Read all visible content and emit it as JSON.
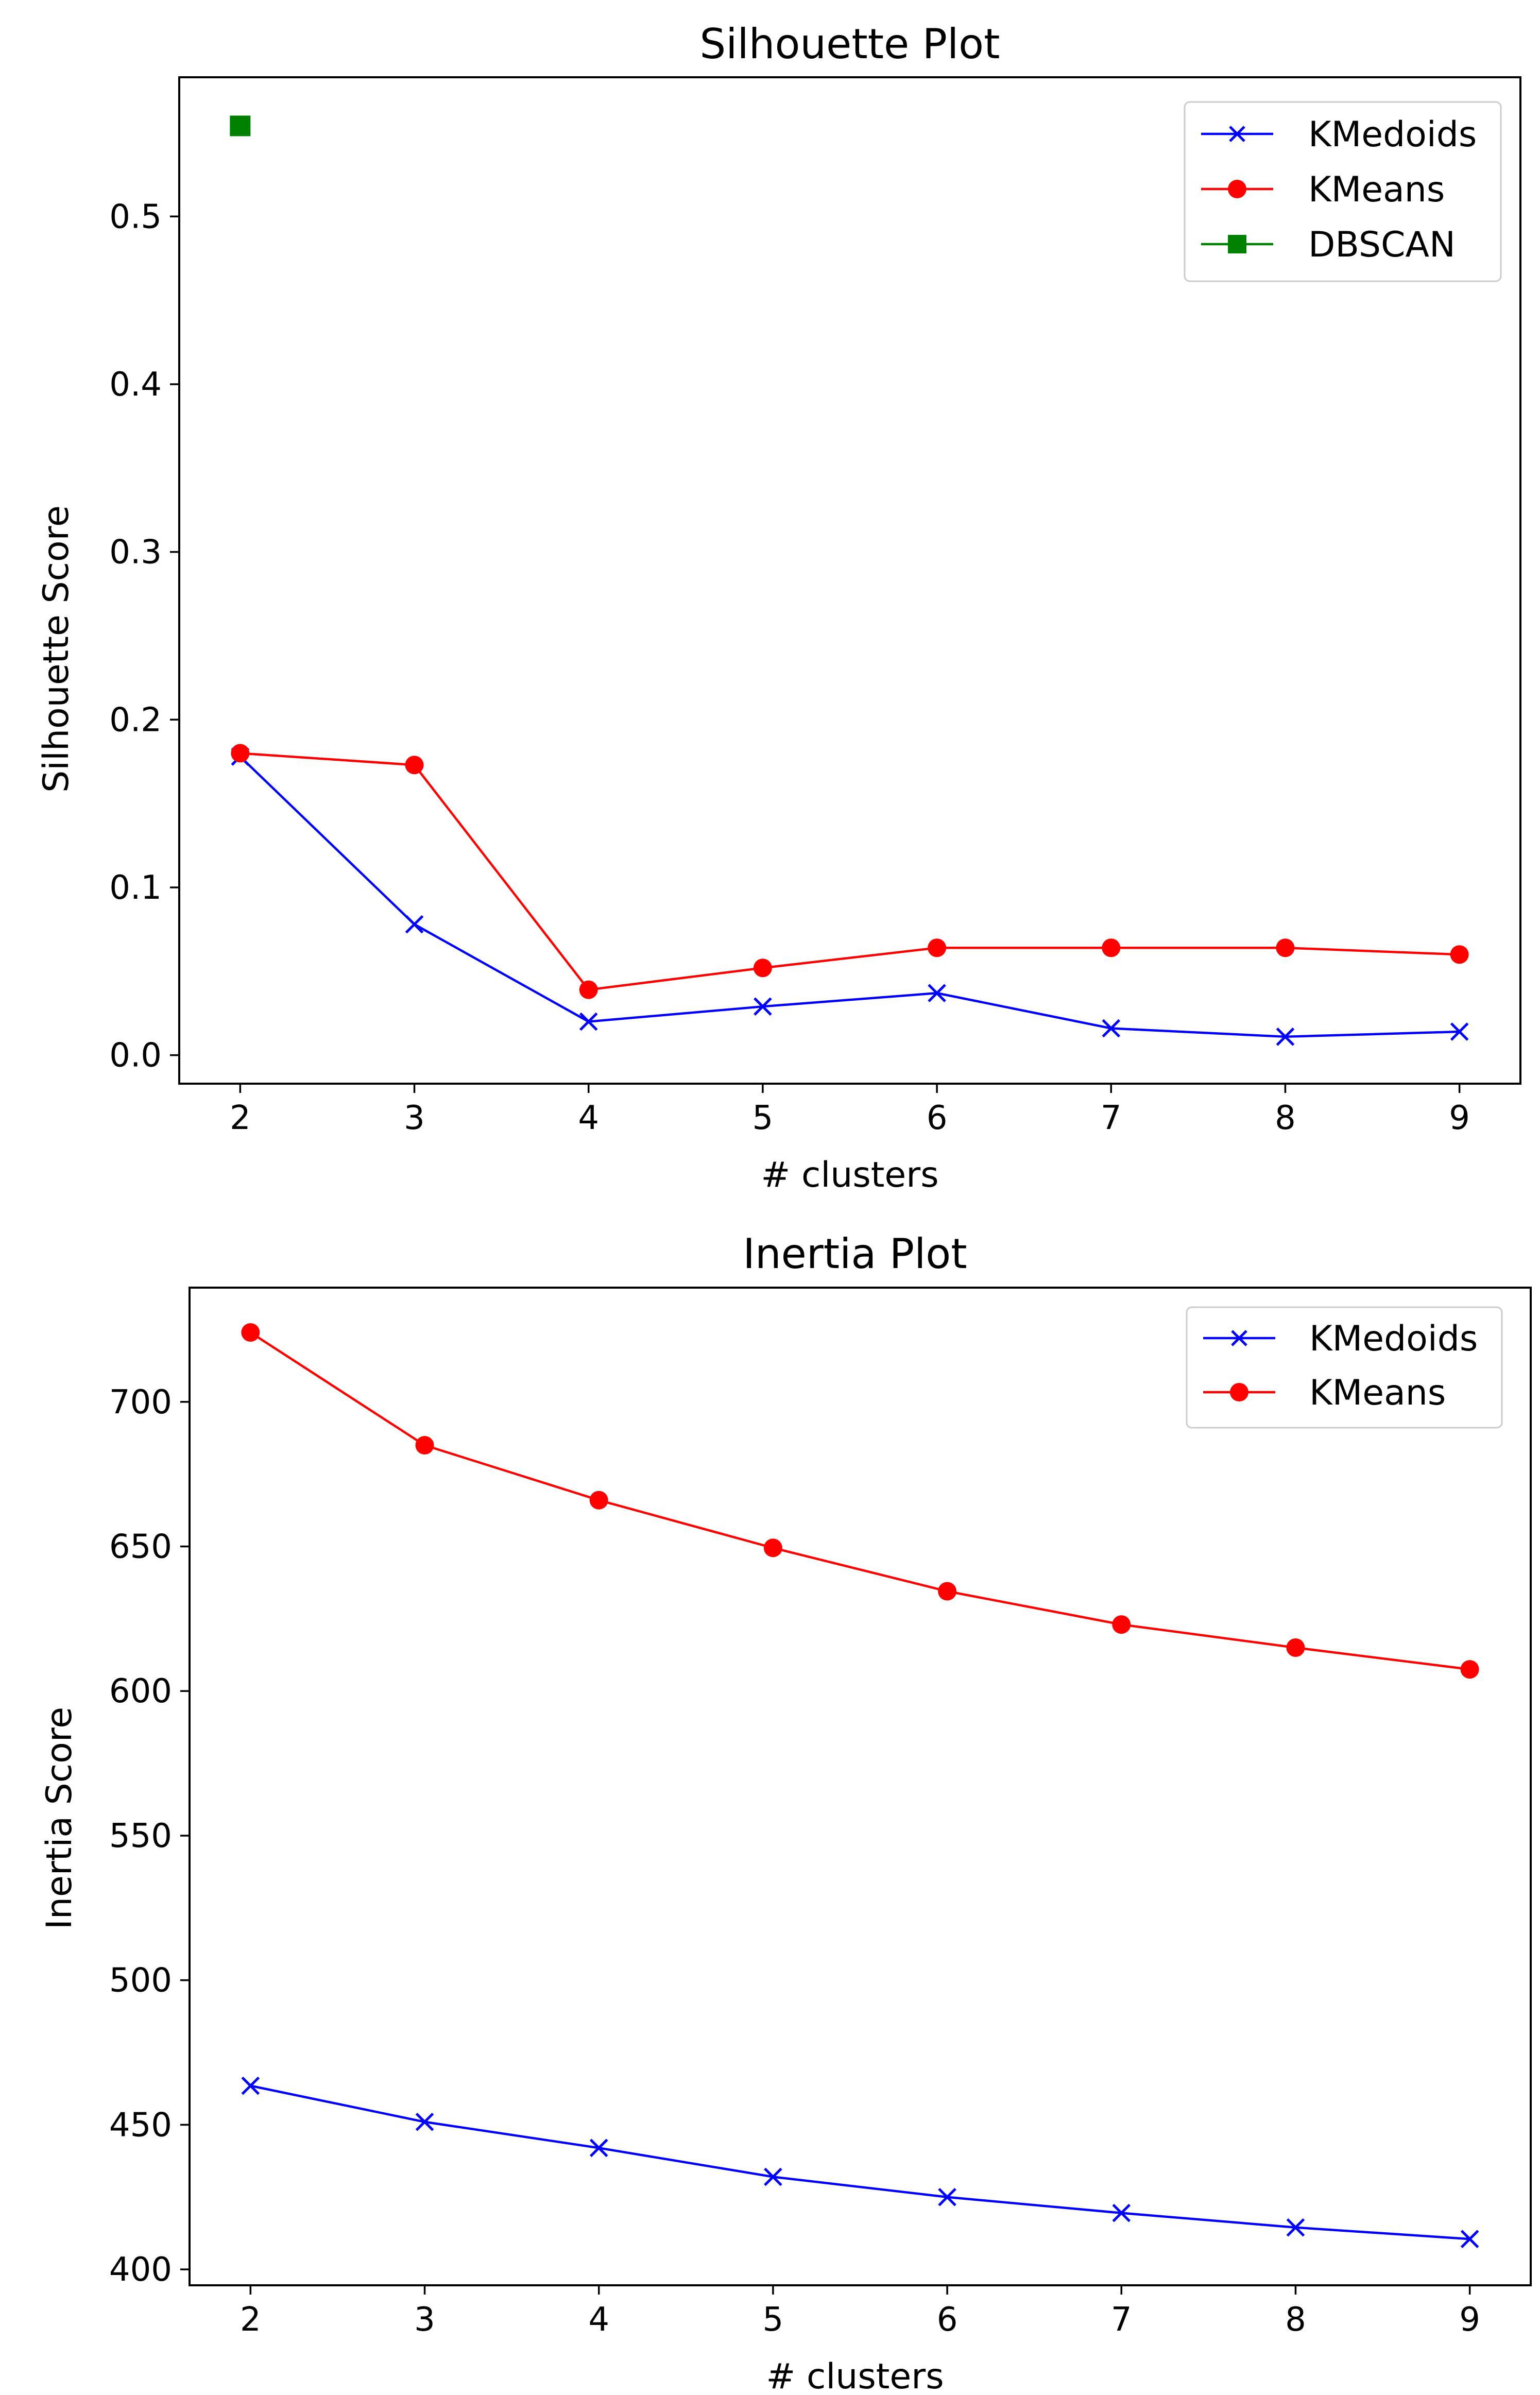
{
  "chart_data": [
    {
      "type": "line",
      "title": "Silhouette Plot",
      "xlabel": "# clusters",
      "ylabel": "Silhouette Score",
      "x": [
        2,
        3,
        4,
        5,
        6,
        7,
        8,
        9
      ],
      "x_ticks": [
        "2",
        "3",
        "4",
        "5",
        "6",
        "7",
        "8",
        "9"
      ],
      "y_ticks": [
        "0.0",
        "0.1",
        "0.2",
        "0.3",
        "0.4",
        "0.5"
      ],
      "xlim": [
        1.65,
        9.35
      ],
      "ylim": [
        -0.017,
        0.583
      ],
      "grid": false,
      "legend_position": "top-right",
      "series": [
        {
          "name": "KMedoids",
          "color": "#0000ff",
          "marker": "x",
          "x": [
            2,
            3,
            4,
            5,
            6,
            7,
            8,
            9
          ],
          "values": [
            0.178,
            0.078,
            0.02,
            0.029,
            0.037,
            0.016,
            0.011,
            0.014
          ]
        },
        {
          "name": "KMeans",
          "color": "#ff0000",
          "marker": "circle",
          "x": [
            2,
            3,
            4,
            5,
            6,
            7,
            8,
            9
          ],
          "values": [
            0.18,
            0.173,
            0.039,
            0.052,
            0.064,
            0.064,
            0.064,
            0.06
          ]
        },
        {
          "name": "DBSCAN",
          "color": "#008000",
          "marker": "square",
          "x": [
            2
          ],
          "values": [
            0.554
          ]
        }
      ]
    },
    {
      "type": "line",
      "title": "Inertia Plot",
      "xlabel": "# clusters",
      "ylabel": "Inertia Score",
      "x": [
        2,
        3,
        4,
        5,
        6,
        7,
        8,
        9
      ],
      "x_ticks": [
        "2",
        "3",
        "4",
        "5",
        "6",
        "7",
        "8",
        "9"
      ],
      "y_ticks": [
        "400",
        "450",
        "500",
        "550",
        "600",
        "650",
        "700"
      ],
      "xlim": [
        1.65,
        9.35
      ],
      "ylim": [
        394.5,
        739.5
      ],
      "grid": false,
      "legend_position": "top-right",
      "series": [
        {
          "name": "KMedoids",
          "color": "#0000ff",
          "marker": "x",
          "x": [
            2,
            3,
            4,
            5,
            6,
            7,
            8,
            9
          ],
          "values": [
            463.5,
            451,
            442,
            432,
            425,
            419.5,
            414.5,
            410.5
          ]
        },
        {
          "name": "KMeans",
          "color": "#ff0000",
          "marker": "circle",
          "x": [
            2,
            3,
            4,
            5,
            6,
            7,
            8,
            9
          ],
          "values": [
            724,
            685,
            666,
            649.5,
            634.5,
            623,
            615,
            607.5
          ]
        }
      ]
    }
  ]
}
